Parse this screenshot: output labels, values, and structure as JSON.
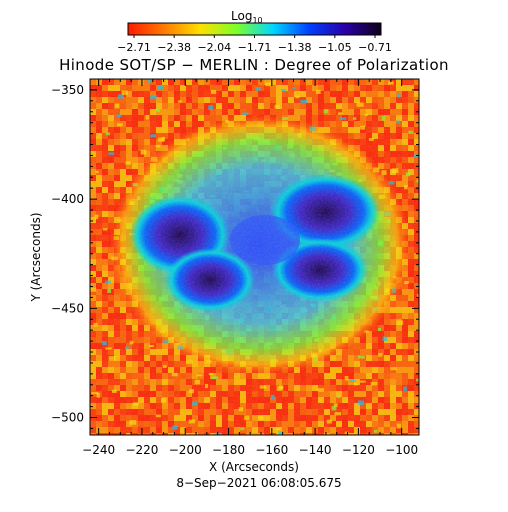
{
  "colorbar": {
    "label": "Log",
    "label_subscript": "10",
    "ticks": [
      "−2.71",
      "−2.38",
      "−2.04",
      "−1.71",
      "−1.38",
      "−1.05",
      "−0.71"
    ],
    "colors": [
      "#ff1a00",
      "#ff7a00",
      "#ffe000",
      "#7dff2a",
      "#00d8ff",
      "#0040ff",
      "#2a00a8",
      "#100018"
    ]
  },
  "title": "Hinode SOT/SP − MERLIN : Degree of Polarization",
  "x_axis": {
    "label": "X (Arcseconds)",
    "range": [
      -244,
      -92
    ],
    "major_ticks": [
      -240,
      -220,
      -200,
      -180,
      -160,
      -140,
      -120,
      -100
    ],
    "tick_labels": [
      "−240",
      "−220",
      "−200",
      "−180",
      "−160",
      "−140",
      "−120",
      "−100"
    ]
  },
  "y_axis": {
    "label": "Y (Arcseconds)",
    "range": [
      -508,
      -345
    ],
    "major_ticks": [
      -350,
      -400,
      -450,
      -500
    ],
    "tick_labels": [
      "−350",
      "−400",
      "−450",
      "−500"
    ]
  },
  "timestamp": "8−Sep−2021 06:08:05.675"
}
